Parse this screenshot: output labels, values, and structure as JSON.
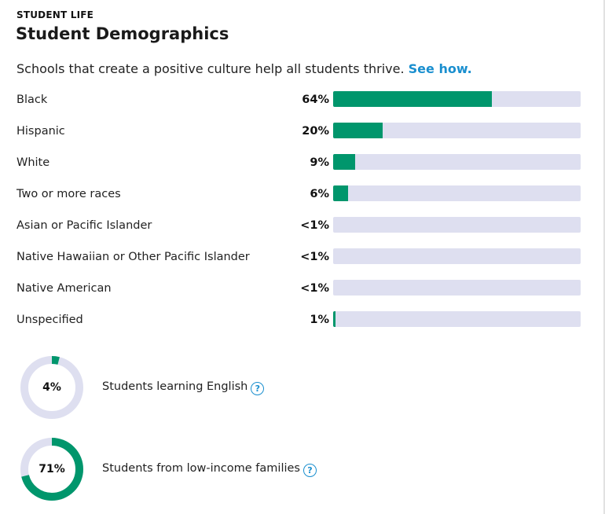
{
  "header": {
    "section_label": "STUDENT LIFE",
    "title": "Student Demographics"
  },
  "intro": {
    "text": "Schools that create a positive culture help all students thrive.",
    "link_label": "See how."
  },
  "colors": {
    "fill": "#00966c",
    "track": "#dedff0",
    "link": "#1a8fcf"
  },
  "demographics": [
    {
      "label": "Black",
      "value_label": "64%",
      "percent": 64
    },
    {
      "label": "Hispanic",
      "value_label": "20%",
      "percent": 20
    },
    {
      "label": "White",
      "value_label": "9%",
      "percent": 9
    },
    {
      "label": "Two or more races",
      "value_label": "6%",
      "percent": 6
    },
    {
      "label": "Asian or Pacific Islander",
      "value_label": "<1%",
      "percent": 0
    },
    {
      "label": "Native Hawaiian or Other Pacific Islander",
      "value_label": "<1%",
      "percent": 0
    },
    {
      "label": "Native American",
      "value_label": "<1%",
      "percent": 0
    },
    {
      "label": "Unspecified",
      "value_label": "1%",
      "percent": 1
    }
  ],
  "stats": [
    {
      "value_label": "4%",
      "percent": 4,
      "label": "Students learning English",
      "help_icon": "question-circle-icon"
    },
    {
      "value_label": "71%",
      "percent": 71,
      "label": "Students from low-income families",
      "help_icon": "question-circle-icon"
    }
  ]
}
